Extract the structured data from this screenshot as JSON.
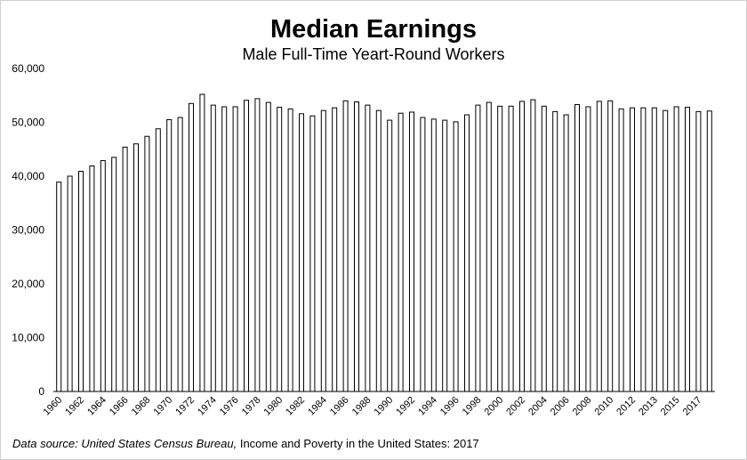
{
  "chart_data": {
    "type": "bar",
    "title": "Median Earnings",
    "subtitle": "Male Full-Time Yeart-Round Workers",
    "source": "Data source: United States Census Bureau,",
    "source_title": "Income and Poverty in the United States: 2017",
    "categories": [
      "1960",
      null,
      "1962",
      null,
      "1964",
      null,
      "1966",
      null,
      "1968",
      null,
      "1970",
      null,
      "1972",
      null,
      "1974",
      null,
      "1976",
      null,
      "1978",
      null,
      "1980",
      null,
      "1982",
      null,
      "1984",
      null,
      "1986",
      null,
      "1988",
      null,
      "1990",
      null,
      "1992",
      null,
      "1994",
      null,
      "1996",
      null,
      "1998",
      null,
      "2000",
      null,
      "2002",
      null,
      "2004",
      null,
      "2006",
      null,
      "2008",
      null,
      "2010",
      null,
      "2012",
      null,
      "2013",
      null,
      "2015",
      null,
      "2017",
      null
    ],
    "values": [
      38900,
      40000,
      40900,
      41900,
      42900,
      43500,
      45400,
      46000,
      47400,
      48800,
      50500,
      50900,
      53500,
      55200,
      53200,
      52900,
      52900,
      54100,
      54400,
      53700,
      52800,
      52500,
      51600,
      51200,
      52200,
      52700,
      54000,
      53800,
      53200,
      52200,
      50400,
      51700,
      51900,
      50900,
      50600,
      50400,
      50100,
      51400,
      53200,
      53700,
      53000,
      53000,
      53900,
      54200,
      53000,
      52000,
      51400,
      53300,
      52900,
      53900,
      54000,
      52500,
      52700,
      52700,
      52700,
      52200,
      52900,
      52800,
      52000,
      52100
    ],
    "color": "#ffffff",
    "stroke": "#000000",
    "ylim": [
      0,
      60000
    ],
    "yticks": [
      0,
      {
        "value": 10000,
        "label": "10,000"
      },
      {
        "value": 20000,
        "label": "20,000"
      },
      {
        "value": 30000,
        "label": "30,000"
      },
      {
        "value": 40000,
        "label": "40,000"
      },
      {
        "value": 50000,
        "label": "50,000"
      },
      {
        "value": 60000,
        "label": "60,000"
      }
    ],
    "grid": false
  }
}
